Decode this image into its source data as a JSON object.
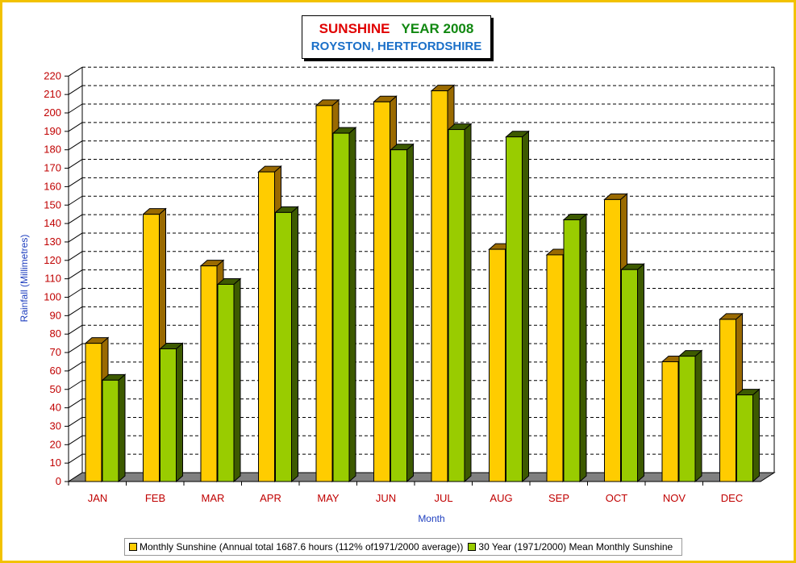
{
  "title": {
    "word1": "SUNSHINE",
    "word2": "YEAR 2008",
    "subtitle": "ROYSTON, HERTFORDSHIRE"
  },
  "colors": {
    "series1": "#ffcc00",
    "series1_dark": "#9a6a00",
    "series2": "#99cc00",
    "series2_dark": "#3d5a00",
    "frame": "#f2c200",
    "floor": "#808080"
  },
  "chart_data": {
    "type": "bar",
    "categories": [
      "JAN",
      "FEB",
      "MAR",
      "APR",
      "MAY",
      "JUN",
      "JUL",
      "AUG",
      "SEP",
      "OCT",
      "NOV",
      "DEC"
    ],
    "series": [
      {
        "name": "Monthly Sunshine (Annual total 1687.6 hours (112% of1971/2000 average))",
        "values": [
          75,
          145,
          117,
          168,
          204,
          206,
          212,
          126,
          123,
          153,
          65,
          88
        ]
      },
      {
        "name": "30 Year (1971/2000) Mean Monthly Sunshine",
        "values": [
          55,
          72,
          107,
          146,
          189,
          180,
          191,
          187,
          142,
          115,
          68,
          47
        ]
      }
    ],
    "xlabel": "Month",
    "ylabel": "Rainfall  (Millimetres)",
    "ylim": [
      0,
      220
    ],
    "ytick_step": 10,
    "grid": true,
    "legend": "bottom",
    "style": "3d"
  }
}
